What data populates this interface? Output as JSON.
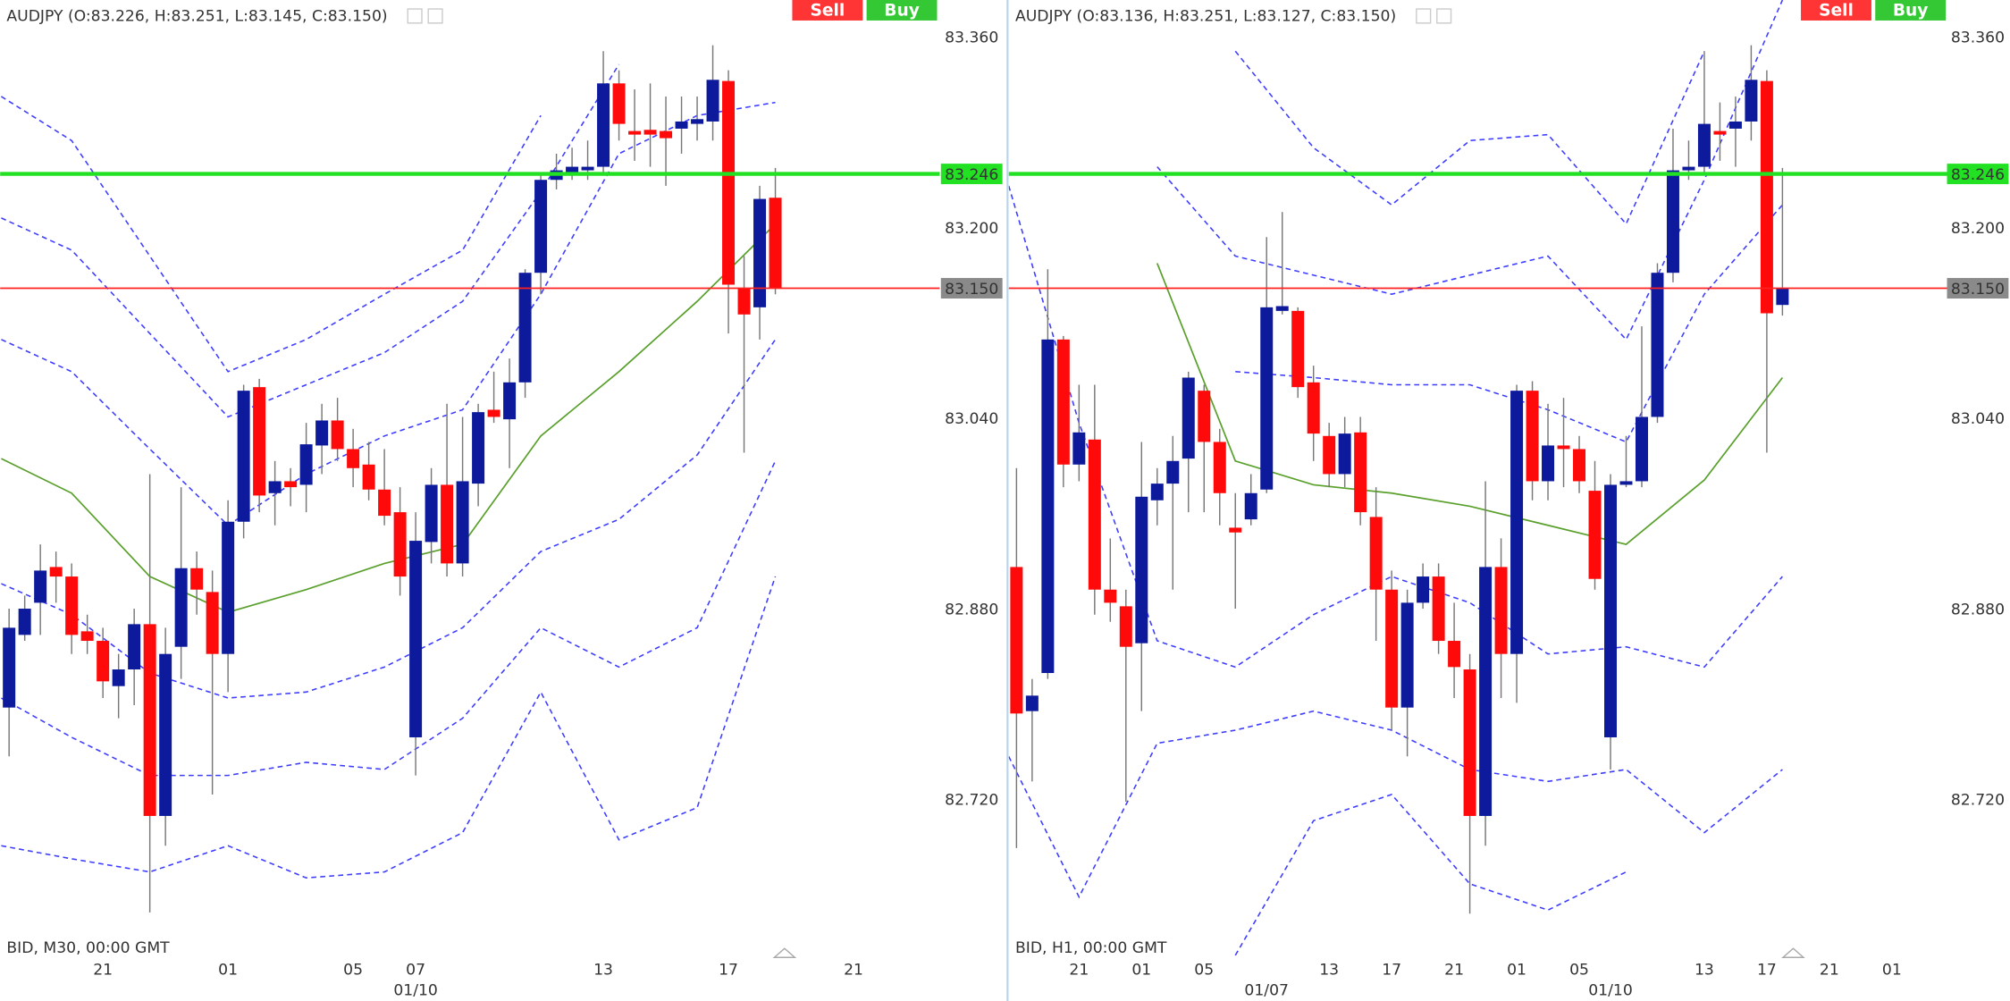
{
  "chart_data": [
    {
      "type": "candlestick",
      "title": "AUDJPY (O:83.226, H:83.251, L:83.145, C:83.150)",
      "footer": "BID, M30, 00:00 GMT",
      "buttons": [
        "Sell",
        "Buy"
      ],
      "up_color": "#0d1a9c",
      "down_color": "#ff0a0a",
      "open": [
        82.798,
        82.859,
        82.886,
        82.916,
        82.908,
        82.862,
        82.854,
        82.816,
        82.83,
        82.868,
        82.707,
        82.849,
        82.915,
        82.895,
        82.843,
        82.954,
        83.067,
        82.978,
        82.988,
        82.985,
        83.018,
        83.039,
        83.015,
        83.002,
        82.981,
        82.962,
        82.773,
        82.937,
        82.985,
        82.919,
        82.986,
        83.048,
        83.04,
        83.071,
        83.163,
        83.241,
        83.245,
        83.249,
        83.252,
        83.322,
        83.282,
        83.283,
        83.282,
        83.284,
        83.288,
        83.29,
        83.324,
        83.15,
        83.134,
        83.226
      ],
      "high": [
        82.881,
        82.892,
        82.935,
        82.929,
        82.919,
        82.876,
        82.865,
        82.843,
        82.881,
        82.994,
        82.865,
        82.983,
        82.929,
        82.913,
        82.972,
        83.069,
        83.074,
        83.005,
        82.999,
        83.037,
        83.053,
        83.058,
        83.032,
        83.021,
        83.015,
        82.983,
        82.962,
        82.999,
        83.053,
        83.042,
        83.053,
        83.08,
        83.091,
        83.166,
        83.247,
        83.263,
        83.268,
        83.274,
        83.349,
        83.333,
        83.317,
        83.322,
        83.311,
        83.311,
        83.311,
        83.354,
        83.333,
        83.177,
        83.236,
        83.251
      ],
      "low": [
        82.757,
        82.854,
        82.859,
        82.886,
        82.843,
        82.843,
        82.806,
        82.789,
        82.8,
        82.626,
        82.682,
        82.822,
        82.876,
        82.725,
        82.811,
        82.94,
        82.962,
        82.951,
        82.967,
        82.962,
        82.994,
        83.005,
        82.983,
        82.972,
        82.951,
        82.892,
        82.741,
        82.919,
        82.908,
        82.908,
        82.967,
        83.037,
        82.999,
        83.058,
        83.145,
        83.233,
        83.241,
        83.241,
        83.247,
        83.274,
        83.257,
        83.252,
        83.236,
        83.263,
        83.274,
        83.274,
        83.112,
        83.012,
        83.107,
        83.145
      ],
      "close": [
        82.865,
        82.881,
        82.913,
        82.908,
        82.859,
        82.854,
        82.82,
        82.83,
        82.868,
        82.707,
        82.843,
        82.915,
        82.897,
        82.843,
        82.954,
        83.064,
        82.976,
        82.988,
        82.983,
        83.019,
        83.039,
        83.015,
        82.999,
        82.981,
        82.959,
        82.908,
        82.938,
        82.985,
        82.919,
        82.988,
        83.046,
        83.042,
        83.071,
        83.163,
        83.241,
        83.249,
        83.252,
        83.252,
        83.322,
        83.288,
        83.279,
        83.279,
        83.276,
        83.29,
        83.292,
        83.325,
        83.153,
        83.128,
        83.225,
        83.15
      ],
      "indicator_x": [
        -0.5,
        4,
        9,
        14,
        19,
        24,
        29,
        34,
        39,
        44,
        49
      ],
      "indicators": [
        {
          "color": "#3d3dff",
          "dashed": true,
          "values": [
            83.311,
            83.274,
            83.177,
            83.08,
            83.107,
            83.145,
            83.182,
            83.295,
            null,
            null,
            null
          ]
        },
        {
          "color": "#3d3dff",
          "dashed": true,
          "values": [
            83.209,
            83.182,
            83.112,
            83.042,
            83.069,
            83.096,
            83.139,
            83.231,
            83.338,
            null,
            null
          ]
        },
        {
          "color": "#3d3dff",
          "dashed": true,
          "values": [
            83.107,
            83.08,
            83.015,
            82.951,
            82.994,
            83.026,
            83.048,
            83.145,
            83.263,
            83.295,
            83.306
          ]
        },
        {
          "color": "#5aa02c",
          "dashed": false,
          "values": [
            83.007,
            82.978,
            82.908,
            82.878,
            82.897,
            82.919,
            82.935,
            83.026,
            83.08,
            83.139,
            83.204
          ]
        },
        {
          "color": "#3d3dff",
          "dashed": true,
          "values": [
            82.902,
            82.876,
            82.827,
            82.806,
            82.811,
            82.832,
            82.865,
            82.929,
            82.956,
            83.01,
            83.107
          ]
        },
        {
          "color": "#3d3dff",
          "dashed": true,
          "values": [
            82.806,
            82.773,
            82.741,
            82.741,
            82.752,
            82.746,
            82.789,
            82.865,
            82.832,
            82.865,
            83.005
          ]
        },
        {
          "color": "#3d3dff",
          "dashed": true,
          "values": [
            82.682,
            82.671,
            82.66,
            82.682,
            82.655,
            82.66,
            82.693,
            82.811,
            82.687,
            82.714,
            82.908
          ]
        }
      ],
      "hlines": [
        {
          "value": 83.246,
          "color": "#22e022"
        },
        {
          "value": 83.15,
          "label": "83.150",
          "color": "#ff2020"
        }
      ],
      "ylim": [
        82.585,
        83.392
      ],
      "yticks": [
        {
          "value": 83.36,
          "label": "83.360"
        },
        {
          "value": 83.2,
          "label": "83.200"
        },
        {
          "value": 83.04,
          "label": "83.040"
        },
        {
          "value": 82.88,
          "label": "82.880"
        },
        {
          "value": 82.72,
          "label": "82.720"
        }
      ],
      "xlim": [
        -0.57,
        58.85
      ],
      "xticks": [
        {
          "value": 6,
          "label": "21"
        },
        {
          "value": 14,
          "label": "01"
        },
        {
          "value": 22,
          "label": "05"
        },
        {
          "value": 26,
          "label": "07"
        },
        {
          "value": 38,
          "label": "13"
        },
        {
          "value": 46,
          "label": "17"
        },
        {
          "value": 54,
          "label": "21"
        }
      ],
      "xticks2": [
        {
          "value": 26,
          "label": "01/10"
        }
      ]
    },
    {
      "type": "candlestick",
      "title": "AUDJPY (O:83.136, H:83.251, L:83.127, C:83.150)",
      "footer": "BID, H1, 00:00 GMT",
      "buttons": [
        "Sell",
        "Buy"
      ],
      "up_color": "#0d1a9c",
      "down_color": "#ff0a0a",
      "open": [
        82.916,
        82.795,
        82.827,
        83.107,
        83.002,
        83.023,
        82.897,
        82.883,
        82.852,
        82.972,
        82.986,
        83.007,
        83.064,
        83.021,
        82.949,
        82.956,
        82.981,
        83.131,
        83.131,
        83.071,
        83.026,
        82.994,
        83.029,
        82.958,
        82.897,
        82.798,
        82.886,
        82.908,
        82.854,
        82.83,
        82.707,
        82.916,
        82.843,
        83.064,
        82.988,
        83.018,
        83.015,
        82.98,
        82.773,
        82.985,
        82.988,
        83.042,
        83.163,
        83.249,
        83.252,
        83.282,
        83.284,
        83.29,
        83.324,
        83.136
      ],
      "high": [
        82.999,
        82.822,
        83.166,
        83.11,
        83.069,
        83.069,
        82.94,
        82.897,
        83.021,
        82.999,
        83.026,
        83.08,
        83.069,
        83.032,
        82.978,
        82.994,
        83.193,
        83.214,
        83.134,
        83.085,
        83.037,
        83.042,
        83.042,
        82.983,
        82.913,
        82.897,
        82.919,
        82.919,
        82.886,
        82.843,
        82.988,
        82.94,
        83.069,
        83.072,
        83.053,
        83.058,
        83.026,
        83.005,
        82.994,
        83.026,
        83.118,
        83.171,
        83.284,
        83.274,
        83.349,
        83.306,
        83.311,
        83.354,
        83.333,
        83.251
      ],
      "low": [
        82.68,
        82.736,
        82.822,
        82.983,
        82.988,
        82.876,
        82.87,
        82.719,
        82.795,
        82.951,
        82.897,
        82.962,
        82.962,
        82.951,
        82.881,
        82.951,
        82.978,
        83.128,
        83.058,
        83.005,
        82.983,
        82.983,
        82.951,
        82.854,
        82.779,
        82.757,
        82.881,
        82.843,
        82.806,
        82.625,
        82.682,
        82.806,
        82.802,
        82.972,
        82.972,
        82.983,
        82.978,
        82.897,
        82.746,
        82.983,
        82.983,
        83.037,
        83.155,
        83.241,
        83.247,
        83.257,
        83.252,
        83.274,
        83.012,
        83.127
      ],
      "close": [
        82.793,
        82.808,
        83.107,
        83.002,
        83.029,
        82.897,
        82.886,
        82.849,
        82.975,
        82.986,
        83.005,
        83.075,
        83.021,
        82.978,
        82.945,
        82.978,
        83.134,
        83.135,
        83.067,
        83.028,
        82.994,
        83.028,
        82.962,
        82.897,
        82.798,
        82.886,
        82.908,
        82.854,
        82.832,
        82.707,
        82.916,
        82.843,
        83.064,
        82.988,
        83.018,
        83.015,
        82.988,
        82.906,
        82.985,
        82.988,
        83.042,
        83.163,
        83.249,
        83.252,
        83.288,
        83.279,
        83.29,
        83.325,
        83.129,
        83.15
      ],
      "indicator_x": [
        -0.5,
        4,
        9,
        14,
        19,
        24,
        29,
        34,
        39,
        44,
        49
      ],
      "indicators": [
        {
          "color": "#3d3dff",
          "dashed": true,
          "values": [
            null,
            null,
            null,
            83.349,
            83.268,
            83.22,
            83.274,
            83.279,
            83.204,
            83.349,
            null
          ]
        },
        {
          "color": "#3d3dff",
          "dashed": true,
          "values": [
            null,
            null,
            83.252,
            83.177,
            83.161,
            83.145,
            83.161,
            83.177,
            83.107,
            83.241,
            83.392
          ]
        },
        {
          "color": "#3d3dff",
          "dashed": true,
          "values": [
            null,
            null,
            null,
            83.08,
            83.075,
            83.069,
            83.069,
            83.048,
            83.021,
            83.145,
            83.22
          ]
        },
        {
          "color": "#5aa02c",
          "dashed": false,
          "values": [
            null,
            null,
            83.171,
            83.005,
            82.985,
            82.978,
            82.967,
            82.951,
            82.935,
            82.989,
            83.075
          ]
        },
        {
          "color": "#3d3dff",
          "dashed": true,
          "values": [
            83.236,
            83.037,
            82.854,
            82.832,
            82.876,
            82.908,
            82.886,
            82.843,
            82.849,
            82.832,
            82.908
          ]
        },
        {
          "color": "#3d3dff",
          "dashed": true,
          "values": [
            82.757,
            82.639,
            82.768,
            82.779,
            82.795,
            82.779,
            82.746,
            82.736,
            82.746,
            82.693,
            82.746
          ]
        },
        {
          "color": "#3d3dff",
          "dashed": true,
          "values": [
            null,
            null,
            null,
            82.59,
            82.703,
            82.725,
            82.65,
            82.628,
            82.66,
            null,
            null
          ]
        }
      ],
      "hlines": [
        {
          "value": 83.246,
          "color": "#22e022"
        },
        {
          "value": 83.15,
          "label": "83.150",
          "color": "#ff2020"
        }
      ],
      "ylim": [
        82.585,
        83.392
      ],
      "yticks": [
        {
          "value": 83.36,
          "label": "83.360"
        },
        {
          "value": 83.2,
          "label": "83.200"
        },
        {
          "value": 83.04,
          "label": "83.040"
        },
        {
          "value": 82.88,
          "label": "82.880"
        },
        {
          "value": 82.72,
          "label": "82.720"
        }
      ],
      "xlim": [
        -0.49,
        59.2
      ],
      "xticks": [
        {
          "value": 4,
          "label": "21"
        },
        {
          "value": 8,
          "label": "01"
        },
        {
          "value": 12,
          "label": "05"
        },
        {
          "value": 20,
          "label": "13"
        },
        {
          "value": 24,
          "label": "17"
        },
        {
          "value": 28,
          "label": "21"
        },
        {
          "value": 32,
          "label": "01"
        },
        {
          "value": 36,
          "label": "05"
        },
        {
          "value": 44,
          "label": "13"
        },
        {
          "value": 48,
          "label": "17"
        },
        {
          "value": 52,
          "label": "21"
        },
        {
          "value": 56,
          "label": "01"
        }
      ],
      "xticks2": [
        {
          "value": 16,
          "label": "01/07"
        },
        {
          "value": 38,
          "label": "01/10"
        }
      ]
    }
  ]
}
